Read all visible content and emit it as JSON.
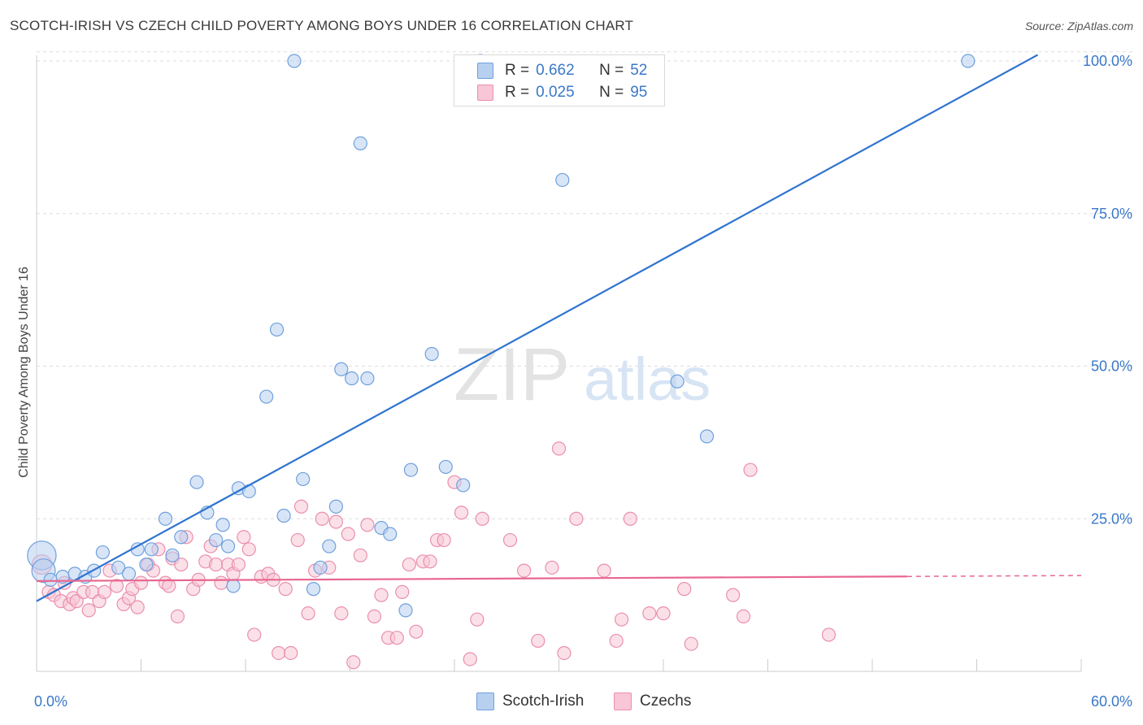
{
  "header": {
    "title": "SCOTCH-IRISH VS CZECH CHILD POVERTY AMONG BOYS UNDER 16 CORRELATION CHART",
    "source": "Source: ZipAtlas.com"
  },
  "watermark": {
    "zip": "ZIP",
    "atlas": "atlas"
  },
  "legend_top": {
    "rows": [
      {
        "r_label": "R =",
        "r_value": "0.662",
        "n_label": "N =",
        "n_value": "52"
      },
      {
        "r_label": "R =",
        "r_value": "0.025",
        "n_label": "N =",
        "n_value": "95"
      }
    ]
  },
  "legend_bottom": {
    "items": [
      {
        "label": "Scotch-Irish"
      },
      {
        "label": "Czechs"
      }
    ]
  },
  "colors": {
    "blue_fill": "#b8d0f0",
    "blue_stroke": "#6fa0dc",
    "blue_line": "#2f74d0",
    "pink_fill": "#f8c6d6",
    "pink_stroke": "#ea8fae",
    "pink_line": "#e8668f",
    "tick_label": "#3a78c9",
    "grid": "#dddddd"
  },
  "chart_data": {
    "type": "scatter",
    "title": "SCOTCH-IRISH VS CZECH CHILD POVERTY AMONG BOYS UNDER 16 CORRELATION CHART",
    "xlabel": "",
    "ylabel": "Child Poverty Among Boys Under 16",
    "xlim": [
      0,
      60
    ],
    "ylim": [
      0,
      102
    ],
    "x_tick_labels": [
      "0.0%",
      "60.0%"
    ],
    "y_ticks": [
      25,
      50,
      75,
      100
    ],
    "y_tick_labels": [
      "25.0%",
      "50.0%",
      "75.0%",
      "100.0%"
    ],
    "grid": true,
    "legend_position": "top-center",
    "series": [
      {
        "name": "Scotch-Irish",
        "r": 0.662,
        "n": 52,
        "trend": {
          "x": [
            0,
            57.5
          ],
          "y": [
            11.5,
            101
          ]
        },
        "points": [
          [
            0.3,
            19.0,
            2.2
          ],
          [
            0.4,
            16.5,
            1.8
          ],
          [
            0.8,
            15.0,
            1
          ],
          [
            1.5,
            15.5,
            1
          ],
          [
            2.2,
            16.0,
            1
          ],
          [
            2.8,
            15.5,
            1
          ],
          [
            3.3,
            16.5,
            1
          ],
          [
            3.8,
            19.5,
            1
          ],
          [
            4.7,
            17.0,
            1
          ],
          [
            5.3,
            16.0,
            1
          ],
          [
            5.8,
            20.0,
            1
          ],
          [
            6.3,
            17.5,
            1
          ],
          [
            6.6,
            20.0,
            1
          ],
          [
            7.4,
            25.0,
            1
          ],
          [
            7.8,
            19.0,
            1
          ],
          [
            8.3,
            22.0,
            1
          ],
          [
            9.2,
            31.0,
            1
          ],
          [
            9.8,
            26.0,
            1
          ],
          [
            10.3,
            21.5,
            1
          ],
          [
            10.7,
            24.0,
            1
          ],
          [
            11.0,
            20.5,
            1
          ],
          [
            11.3,
            14.0,
            1
          ],
          [
            11.6,
            30.0,
            1
          ],
          [
            12.2,
            29.5,
            1
          ],
          [
            13.2,
            45.0,
            1
          ],
          [
            13.8,
            56.0,
            1
          ],
          [
            14.2,
            25.5,
            1
          ],
          [
            14.8,
            100.0,
            1
          ],
          [
            15.3,
            31.5,
            1
          ],
          [
            15.9,
            13.5,
            1
          ],
          [
            16.3,
            17.0,
            1
          ],
          [
            16.8,
            20.5,
            1
          ],
          [
            17.2,
            27.0,
            1
          ],
          [
            17.5,
            49.5,
            1
          ],
          [
            18.1,
            48.0,
            1
          ],
          [
            18.6,
            86.5,
            1
          ],
          [
            19.0,
            48.0,
            1
          ],
          [
            19.8,
            23.5,
            1
          ],
          [
            20.3,
            22.5,
            1
          ],
          [
            21.2,
            10.0,
            1
          ],
          [
            21.5,
            33.0,
            1
          ],
          [
            22.7,
            52.0,
            1
          ],
          [
            23.5,
            33.5,
            1
          ],
          [
            24.5,
            30.5,
            1
          ],
          [
            25.5,
            100.0,
            1
          ],
          [
            30.2,
            80.5,
            1
          ],
          [
            36.8,
            47.5,
            1
          ],
          [
            38.5,
            38.5,
            1
          ],
          [
            53.5,
            100.0,
            1
          ]
        ]
      },
      {
        "name": "Czechs",
        "r": 0.025,
        "n": 95,
        "trend": {
          "x": [
            0,
            60
          ],
          "y": [
            14.8,
            15.7
          ],
          "solid_until": 50
        },
        "points": [
          [
            0.3,
            17.5,
            1.5
          ],
          [
            0.7,
            13.0,
            1
          ],
          [
            1.0,
            12.5,
            1
          ],
          [
            1.4,
            11.5,
            1
          ],
          [
            1.6,
            14.5,
            1
          ],
          [
            1.9,
            11.0,
            1
          ],
          [
            2.1,
            12.0,
            1
          ],
          [
            2.3,
            11.5,
            1
          ],
          [
            2.7,
            13.0,
            1
          ],
          [
            3.0,
            10.0,
            1
          ],
          [
            3.2,
            13.0,
            1
          ],
          [
            3.6,
            11.5,
            1
          ],
          [
            3.9,
            13.0,
            1
          ],
          [
            4.2,
            16.5,
            1
          ],
          [
            4.6,
            14.0,
            1
          ],
          [
            5.0,
            11.0,
            1
          ],
          [
            5.3,
            12.0,
            1
          ],
          [
            5.5,
            13.5,
            1
          ],
          [
            5.8,
            10.5,
            1
          ],
          [
            6.0,
            14.5,
            1
          ],
          [
            6.4,
            17.5,
            1
          ],
          [
            6.7,
            16.5,
            1
          ],
          [
            7.0,
            20.0,
            1
          ],
          [
            7.4,
            14.5,
            1
          ],
          [
            7.6,
            14.0,
            1
          ],
          [
            7.8,
            18.5,
            1
          ],
          [
            8.1,
            9.0,
            1
          ],
          [
            8.3,
            17.5,
            1
          ],
          [
            8.6,
            22.0,
            1
          ],
          [
            9.0,
            13.5,
            1
          ],
          [
            9.3,
            15.0,
            1
          ],
          [
            9.7,
            18.0,
            1
          ],
          [
            10.0,
            20.5,
            1
          ],
          [
            10.3,
            17.5,
            1
          ],
          [
            10.6,
            14.5,
            1
          ],
          [
            11.0,
            17.5,
            1
          ],
          [
            11.3,
            16.0,
            1
          ],
          [
            11.6,
            17.5,
            1
          ],
          [
            11.9,
            22.0,
            1
          ],
          [
            12.2,
            20.0,
            1
          ],
          [
            12.5,
            6.0,
            1
          ],
          [
            12.9,
            15.5,
            1
          ],
          [
            13.3,
            16.0,
            1
          ],
          [
            13.6,
            15.0,
            1
          ],
          [
            13.9,
            3.0,
            1
          ],
          [
            14.3,
            13.5,
            1
          ],
          [
            14.6,
            3.0,
            1
          ],
          [
            15.0,
            21.5,
            1
          ],
          [
            15.2,
            27.0,
            1
          ],
          [
            15.6,
            9.5,
            1
          ],
          [
            16.0,
            16.5,
            1
          ],
          [
            16.4,
            25.0,
            1
          ],
          [
            16.8,
            17.0,
            1
          ],
          [
            17.2,
            24.5,
            1
          ],
          [
            17.5,
            9.5,
            1
          ],
          [
            17.9,
            22.5,
            1
          ],
          [
            18.2,
            1.5,
            1
          ],
          [
            18.6,
            19.0,
            1
          ],
          [
            19.0,
            24.0,
            1
          ],
          [
            19.4,
            9.0,
            1
          ],
          [
            19.8,
            12.5,
            1
          ],
          [
            20.2,
            5.5,
            1
          ],
          [
            20.7,
            5.5,
            1
          ],
          [
            21.0,
            13.0,
            1
          ],
          [
            21.4,
            17.5,
            1
          ],
          [
            21.8,
            6.5,
            1
          ],
          [
            22.2,
            18.0,
            1
          ],
          [
            22.6,
            18.0,
            1
          ],
          [
            23.0,
            21.5,
            1
          ],
          [
            23.4,
            21.5,
            1
          ],
          [
            24.0,
            31.0,
            1
          ],
          [
            24.4,
            26.0,
            1
          ],
          [
            24.9,
            2.0,
            1
          ],
          [
            25.3,
            8.5,
            1
          ],
          [
            25.6,
            25.0,
            1
          ],
          [
            27.2,
            21.5,
            1
          ],
          [
            28.0,
            16.5,
            1
          ],
          [
            28.8,
            5.0,
            1
          ],
          [
            29.6,
            17.0,
            1
          ],
          [
            30.0,
            36.5,
            1
          ],
          [
            30.3,
            3.0,
            1
          ],
          [
            31.0,
            25.0,
            1
          ],
          [
            32.6,
            16.5,
            1
          ],
          [
            33.3,
            5.0,
            1
          ],
          [
            33.6,
            8.5,
            1
          ],
          [
            34.1,
            25.0,
            1
          ],
          [
            35.2,
            9.5,
            1
          ],
          [
            36.0,
            9.5,
            1
          ],
          [
            37.2,
            13.5,
            1
          ],
          [
            37.6,
            4.5,
            1
          ],
          [
            40.0,
            12.5,
            1
          ],
          [
            40.6,
            9.0,
            1
          ],
          [
            41.0,
            33.0,
            1
          ],
          [
            45.5,
            6.0,
            1
          ]
        ]
      }
    ]
  }
}
